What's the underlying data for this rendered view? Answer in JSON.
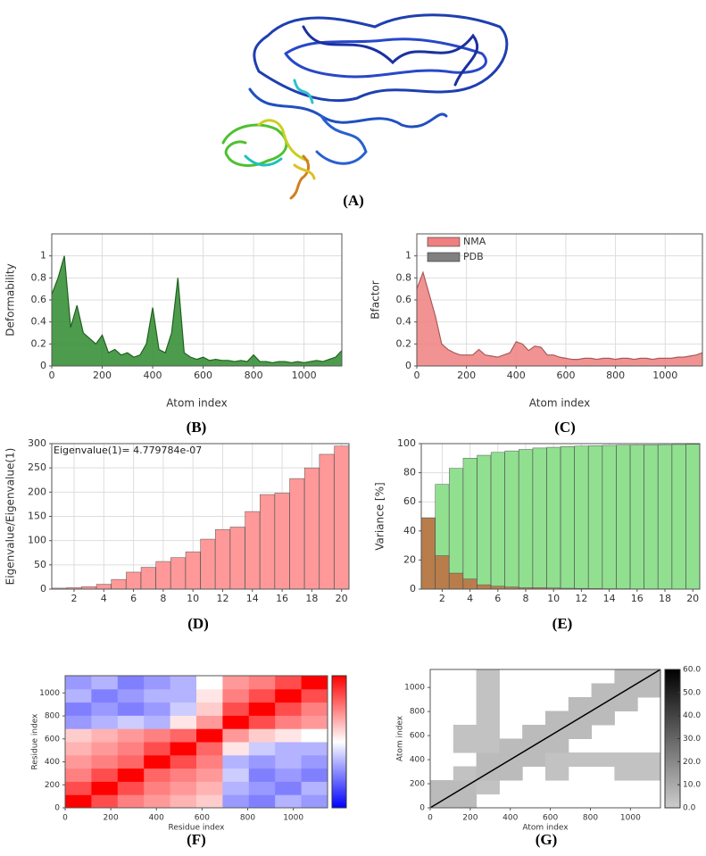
{
  "structure_panel": {
    "label": "(A)"
  },
  "chart_data": [
    {
      "type": "area",
      "label": "(B)",
      "xlabel": "Atom index",
      "ylabel": "Deformability",
      "x": [
        0,
        25,
        50,
        75,
        100,
        125,
        150,
        175,
        200,
        225,
        250,
        275,
        300,
        325,
        350,
        375,
        400,
        425,
        450,
        475,
        500,
        525,
        550,
        575,
        600,
        625,
        650,
        675,
        700,
        725,
        750,
        775,
        800,
        825,
        850,
        875,
        900,
        925,
        950,
        975,
        1000,
        1025,
        1050,
        1075,
        1100,
        1125,
        1150
      ],
      "series": [
        {
          "color": "#2e8b2e",
          "values": [
            0.65,
            0.8,
            1.0,
            0.35,
            0.55,
            0.3,
            0.25,
            0.2,
            0.28,
            0.12,
            0.15,
            0.1,
            0.12,
            0.08,
            0.1,
            0.2,
            0.53,
            0.15,
            0.12,
            0.3,
            0.8,
            0.12,
            0.08,
            0.06,
            0.08,
            0.05,
            0.06,
            0.05,
            0.05,
            0.04,
            0.05,
            0.04,
            0.1,
            0.04,
            0.04,
            0.03,
            0.04,
            0.04,
            0.03,
            0.04,
            0.03,
            0.04,
            0.05,
            0.04,
            0.06,
            0.08,
            0.14
          ]
        }
      ],
      "xlim": [
        0,
        1150
      ],
      "ylim": [
        0,
        1.2
      ],
      "xticks": [
        0,
        200,
        400,
        600,
        800,
        1000
      ],
      "yticks": [
        0,
        0.2,
        0.4,
        0.6,
        0.8,
        1
      ],
      "grid": true
    },
    {
      "type": "area",
      "label": "(C)",
      "xlabel": "Atom index",
      "ylabel": "Bfactor",
      "x": [
        0,
        25,
        50,
        75,
        100,
        125,
        150,
        175,
        200,
        225,
        250,
        275,
        300,
        325,
        350,
        375,
        400,
        425,
        450,
        475,
        500,
        525,
        550,
        575,
        600,
        625,
        650,
        675,
        700,
        725,
        750,
        775,
        800,
        825,
        850,
        875,
        900,
        925,
        950,
        975,
        1000,
        1025,
        1050,
        1075,
        1100,
        1125,
        1150
      ],
      "series": [
        {
          "name": "NMA",
          "color": "#f08080",
          "values": [
            0.7,
            0.85,
            0.65,
            0.45,
            0.2,
            0.15,
            0.12,
            0.1,
            0.1,
            0.1,
            0.15,
            0.1,
            0.09,
            0.08,
            0.1,
            0.12,
            0.22,
            0.2,
            0.14,
            0.18,
            0.17,
            0.1,
            0.1,
            0.08,
            0.07,
            0.06,
            0.06,
            0.07,
            0.07,
            0.06,
            0.07,
            0.07,
            0.06,
            0.07,
            0.07,
            0.06,
            0.07,
            0.07,
            0.06,
            0.07,
            0.07,
            0.07,
            0.08,
            0.08,
            0.09,
            0.1,
            0.12
          ]
        },
        {
          "name": "PDB",
          "color": "#808080",
          "values": [
            null,
            null,
            null,
            null,
            null,
            null,
            null,
            null,
            null,
            null,
            null,
            null,
            null,
            null,
            null,
            null,
            null,
            null,
            null,
            null,
            null,
            null,
            null,
            null,
            null,
            null,
            null,
            null,
            null,
            null,
            null,
            null,
            null,
            null,
            null,
            null,
            null,
            null,
            null,
            null,
            null,
            null,
            null,
            null,
            null,
            null,
            null
          ]
        }
      ],
      "legend": "upper left",
      "xlim": [
        0,
        1150
      ],
      "ylim": [
        0,
        1.2
      ],
      "xticks": [
        0,
        200,
        400,
        600,
        800,
        1000
      ],
      "yticks": [
        0,
        0.2,
        0.4,
        0.6,
        0.8,
        1
      ],
      "grid": true
    },
    {
      "type": "bar",
      "label": "(D)",
      "ylabel": "Eigenvalue/Eigenvalue(1)",
      "annotation": "Eigenvalue(1)= 4.779784e-07",
      "x": [
        1,
        2,
        3,
        4,
        5,
        6,
        7,
        8,
        9,
        10,
        11,
        12,
        13,
        14,
        15,
        16,
        17,
        18,
        19,
        20
      ],
      "series": [
        {
          "color": "#ff9999",
          "values": [
            2,
            3,
            5,
            10,
            20,
            35,
            45,
            57,
            65,
            77,
            103,
            123,
            128,
            160,
            195,
            198,
            228,
            250,
            278,
            295
          ]
        }
      ],
      "xlim": [
        0.5,
        20.5
      ],
      "ylim": [
        0,
        300
      ],
      "xticks": [
        2,
        4,
        6,
        8,
        10,
        12,
        14,
        16,
        18,
        20
      ],
      "yticks": [
        0,
        50,
        100,
        150,
        200,
        250,
        300
      ],
      "grid": true
    },
    {
      "type": "bar",
      "label": "(E)",
      "ylabel": "Variance [%]",
      "x": [
        1,
        2,
        3,
        4,
        5,
        6,
        7,
        8,
        9,
        10,
        11,
        12,
        13,
        14,
        15,
        16,
        17,
        18,
        19,
        20
      ],
      "series": [
        {
          "color": "#90e090",
          "values": [
            49,
            72,
            83,
            90,
            92,
            94,
            95,
            96,
            97,
            97.5,
            98,
            98.3,
            98.6,
            98.8,
            99,
            99.1,
            99.2,
            99.3,
            99.4,
            99.5
          ]
        },
        {
          "color": "#b87d4b",
          "values": [
            49,
            23,
            11,
            7,
            3,
            2,
            1.5,
            1,
            1,
            0.8,
            0.6,
            0.5,
            0.4,
            0.3,
            0.3,
            0.2,
            0.2,
            0.2,
            0.1,
            0.1
          ]
        }
      ],
      "xlim": [
        0.5,
        20.5
      ],
      "ylim": [
        0,
        100
      ],
      "xticks": [
        2,
        4,
        6,
        8,
        10,
        12,
        14,
        16,
        18,
        20
      ],
      "yticks": [
        0,
        20,
        40,
        60,
        80,
        100
      ],
      "grid": true
    },
    {
      "type": "heatmap",
      "label": "(F)",
      "xlabel": "Residue index",
      "ylabel": "Residue index",
      "z": [
        [
          1,
          0.7,
          0.5,
          0.4,
          0.3,
          0.2,
          -0.4,
          -0.5,
          -0.3,
          -0.4
        ],
        [
          0.7,
          1,
          0.7,
          0.5,
          0.4,
          0.3,
          -0.3,
          -0.4,
          -0.5,
          -0.3
        ],
        [
          0.5,
          0.7,
          1,
          0.6,
          0.5,
          0.4,
          -0.2,
          -0.5,
          -0.4,
          -0.5
        ],
        [
          0.4,
          0.5,
          0.6,
          1,
          0.7,
          0.5,
          -0.3,
          -0.4,
          -0.3,
          -0.4
        ],
        [
          0.3,
          0.4,
          0.5,
          0.7,
          1,
          0.6,
          0.1,
          -0.2,
          -0.3,
          -0.3
        ],
        [
          0.2,
          0.3,
          0.4,
          0.5,
          0.6,
          1,
          0.4,
          0.2,
          0.1,
          0.0
        ],
        [
          -0.4,
          -0.3,
          -0.2,
          -0.3,
          0.1,
          0.4,
          1,
          0.7,
          0.5,
          0.4
        ],
        [
          -0.5,
          -0.4,
          -0.5,
          -0.4,
          -0.2,
          0.2,
          0.7,
          1,
          0.7,
          0.5
        ],
        [
          -0.3,
          -0.5,
          -0.4,
          -0.3,
          -0.3,
          0.1,
          0.5,
          0.7,
          1,
          0.7
        ],
        [
          -0.4,
          -0.3,
          -0.5,
          -0.4,
          -0.3,
          0.0,
          0.4,
          0.5,
          0.7,
          1
        ]
      ],
      "zlim": [
        -1,
        1
      ],
      "colormap": [
        "#0000ff",
        "#ffffff",
        "#ff0000"
      ],
      "xlim": [
        0,
        1150
      ],
      "ylim": [
        0,
        1150
      ],
      "xticks": [
        0,
        200,
        400,
        600,
        800,
        1000
      ],
      "yticks": [
        0,
        200,
        400,
        600,
        800,
        1000
      ]
    },
    {
      "type": "heatmap",
      "label": "(G)",
      "xlabel": "Atom index",
      "ylabel": "Atom index",
      "z": [
        [
          5,
          5,
          null,
          null,
          null,
          null,
          null,
          null,
          null,
          null
        ],
        [
          5,
          5,
          3,
          null,
          null,
          null,
          null,
          null,
          null,
          null
        ],
        [
          null,
          3,
          5,
          5,
          null,
          3,
          null,
          null,
          3,
          3
        ],
        [
          null,
          null,
          5,
          5,
          5,
          3,
          3,
          3,
          3,
          3
        ],
        [
          null,
          3,
          3,
          5,
          5,
          5,
          null,
          null,
          null,
          null
        ],
        [
          null,
          3,
          3,
          null,
          5,
          5,
          5,
          null,
          null,
          null
        ],
        [
          null,
          null,
          3,
          null,
          null,
          5,
          5,
          5,
          null,
          null
        ],
        [
          null,
          null,
          3,
          null,
          null,
          null,
          5,
          5,
          5,
          null
        ],
        [
          null,
          null,
          3,
          null,
          null,
          null,
          null,
          5,
          5,
          5
        ],
        [
          null,
          null,
          3,
          null,
          null,
          null,
          null,
          null,
          5,
          5
        ]
      ],
      "zlim": [
        0,
        60
      ],
      "colormap": [
        "#cccccc",
        "#000000"
      ],
      "diagonal_line": true,
      "cticks": [
        {
          "value": 0,
          "label": "0.0"
        },
        {
          "value": 10,
          "label": "10.0"
        },
        {
          "value": 20,
          "label": "20.0"
        },
        {
          "value": 30,
          "label": "30.0"
        },
        {
          "value": 40,
          "label": "40.0"
        },
        {
          "value": 50,
          "label": "50.0"
        },
        {
          "value": 60,
          "label": "60.0"
        }
      ],
      "xlim": [
        0,
        1150
      ],
      "ylim": [
        0,
        1150
      ],
      "xticks": [
        0,
        200,
        400,
        600,
        800,
        1000
      ],
      "yticks": [
        0,
        200,
        400,
        600,
        800,
        1000
      ]
    }
  ]
}
